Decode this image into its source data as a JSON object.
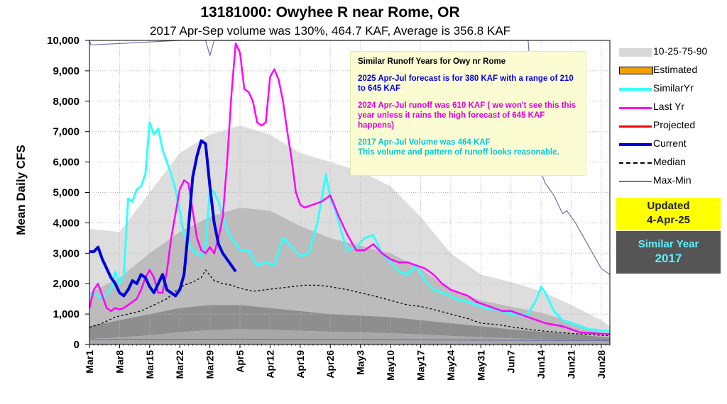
{
  "header": {
    "title": "13181000: Owyhee R near Rome, OR",
    "subtitle": "2017 Apr-Sep volume was 130%, 464.7 KAF, Average is 356.8 KAF"
  },
  "infobox": {
    "heading": "Similar Runoff Years for Owy nr Rome",
    "forecast": "2025 Apr-Jul forecast is for 380 KAF with a range of 210 to 645 KAF",
    "last_year": "2024 Apr-Jul runoff was 610 KAF ( we won't see this this year unless it rains the high forecast of 645 KAF happens)",
    "similar_volume": "2017 Apr-Jul Volume was 464 KAF",
    "similar_note": "This volume and pattern of runoff looks reasonable."
  },
  "legend": [
    {
      "label": "10-25-75-90",
      "key": "band",
      "color": "#d8d8d8"
    },
    {
      "label": "Estimated",
      "key": "estimated",
      "color": "#f0a000"
    },
    {
      "label": "SimilarYr",
      "key": "similar",
      "color": "#33ffff"
    },
    {
      "label": "Last Yr",
      "key": "lastyr",
      "color": "#ff00ff"
    },
    {
      "label": "Projected",
      "key": "projected",
      "color": "#ff0000"
    },
    {
      "label": "Current",
      "key": "current",
      "color": "#0000dd"
    },
    {
      "label": "Median",
      "key": "median",
      "color": "#000000"
    },
    {
      "label": "Max-Min",
      "key": "maxmin",
      "color": "#7070a8"
    }
  ],
  "updated": {
    "label": "Updated",
    "date": "4-Apr-25",
    "bg": "#ffff00"
  },
  "similar_year": {
    "label": "Similar Year",
    "year": "2017",
    "bg": "#555555",
    "color": "#5ef2ff"
  },
  "chart_data": {
    "type": "line",
    "title": "13181000: Owyhee R near Rome, OR",
    "subtitle": "2017 Apr-Sep volume was 130%, 464.7 KAF, Average is 356.8 KAF",
    "ylabel": "Mean Daily CFS",
    "xlabel": "",
    "ylim": [
      0,
      10000
    ],
    "yticks": [
      0,
      1000,
      2000,
      3000,
      4000,
      5000,
      6000,
      7000,
      8000,
      9000,
      10000
    ],
    "ytick_labels": [
      "0",
      "1,000",
      "2,000",
      "3,000",
      "4,000",
      "5,000",
      "6,000",
      "7,000",
      "8,000",
      "9,000",
      "10,000"
    ],
    "xlim": [
      "Mar1",
      "Jun30"
    ],
    "xtick_labels": [
      "Mar1",
      "Mar8",
      "Mar15",
      "Mar22",
      "Mar29",
      "Apr5",
      "Apr12",
      "Apr19",
      "Apr26",
      "May3",
      "May10",
      "May17",
      "May24",
      "May31",
      "Jun7",
      "Jun14",
      "Jun21",
      "Jun28"
    ],
    "xtick_days": [
      0,
      7,
      14,
      21,
      28,
      35,
      42,
      49,
      56,
      63,
      70,
      77,
      84,
      91,
      98,
      105,
      112,
      119
    ],
    "grid": true,
    "colors": {
      "p90": "#dddddd",
      "p75": "#bcbcbc",
      "p25": "#8e8e8e",
      "p10": "#a8a8a8",
      "similar": "#33ffff",
      "lastyr": "#ff00ff",
      "current": "#0000dd",
      "median": "#000000",
      "maxmin": "#7070a8"
    },
    "bands": {
      "days": [
        0,
        7,
        14,
        21,
        28,
        35,
        42,
        49,
        56,
        63,
        70,
        77,
        84,
        91,
        98,
        105,
        112,
        119,
        121
      ],
      "p90": [
        3800,
        3700,
        5000,
        6300,
        6900,
        7200,
        6900,
        6300,
        6000,
        5700,
        5200,
        4200,
        3000,
        2300,
        2050,
        1750,
        1300,
        800,
        600
      ],
      "p75": [
        1700,
        2200,
        3000,
        3700,
        4200,
        4500,
        4400,
        3900,
        3500,
        3250,
        3000,
        2500,
        1800,
        1450,
        1250,
        1050,
        750,
        400,
        350
      ],
      "p25": [
        600,
        800,
        1000,
        1200,
        1300,
        1300,
        1200,
        1100,
        1000,
        950,
        900,
        800,
        700,
        600,
        500,
        420,
        350,
        250,
        230
      ],
      "p10": [
        180,
        230,
        300,
        400,
        470,
        500,
        480,
        450,
        420,
        400,
        370,
        330,
        280,
        240,
        200,
        170,
        140,
        110,
        100
      ]
    },
    "series": [
      {
        "name": "Median",
        "key": "median",
        "dashed": true,
        "x": [
          0,
          3,
          6,
          9,
          12,
          15,
          18,
          20,
          22,
          24,
          26,
          27,
          29,
          31,
          33,
          35,
          38,
          41,
          44,
          47,
          50,
          53,
          56,
          60,
          63,
          66,
          70,
          74,
          77,
          80,
          84,
          88,
          91,
          95,
          98,
          102,
          105,
          109,
          112,
          116,
          119,
          121
        ],
        "y": [
          560,
          700,
          900,
          1000,
          1100,
          1300,
          1500,
          1750,
          1950,
          2050,
          2200,
          2450,
          2100,
          2000,
          1950,
          1850,
          1750,
          1800,
          1850,
          1900,
          1950,
          1950,
          1900,
          1800,
          1700,
          1600,
          1450,
          1300,
          1250,
          1150,
          1000,
          850,
          700,
          650,
          580,
          500,
          450,
          400,
          360,
          330,
          300,
          290
        ]
      },
      {
        "name": "SimilarYr",
        "key": "similar",
        "x": [
          0,
          1,
          3,
          5,
          6,
          7,
          8,
          9,
          10,
          11,
          12,
          13,
          14,
          15,
          16,
          17,
          18,
          19,
          20,
          21,
          22,
          23,
          24,
          25,
          26,
          27,
          28,
          29,
          30,
          31,
          32,
          33,
          35,
          37,
          39,
          41,
          43,
          45,
          47,
          49,
          51,
          53,
          55,
          56,
          57,
          58,
          59,
          60,
          62,
          64,
          66,
          68,
          70,
          72,
          74,
          76,
          78,
          80,
          82,
          84,
          86,
          88,
          90,
          92,
          94,
          96,
          98,
          100,
          102,
          104,
          105,
          106,
          108,
          110,
          112,
          114,
          116,
          118,
          120,
          121
        ],
        "y": [
          1600,
          1700,
          1500,
          1800,
          2400,
          2000,
          2300,
          4800,
          4700,
          5100,
          5200,
          5600,
          7300,
          6900,
          7100,
          6400,
          6000,
          5600,
          5100,
          4400,
          3600,
          3400,
          3100,
          3000,
          2900,
          3300,
          5100,
          5000,
          4700,
          4200,
          3800,
          3500,
          3100,
          3100,
          2600,
          2700,
          2600,
          3500,
          3200,
          2900,
          3000,
          4000,
          5600,
          4800,
          4500,
          4000,
          3500,
          3100,
          3200,
          3500,
          3600,
          3000,
          2700,
          2400,
          2300,
          2600,
          2100,
          1800,
          1700,
          1600,
          1450,
          1400,
          1300,
          1200,
          1150,
          1100,
          1000,
          950,
          1000,
          1500,
          1900,
          1700,
          1100,
          800,
          700,
          600,
          500,
          480,
          440,
          430
        ]
      },
      {
        "name": "Last Yr",
        "key": "lastyr",
        "x": [
          0,
          1,
          2,
          3,
          4,
          5,
          6,
          7,
          8,
          9,
          10,
          11,
          12,
          13,
          14,
          15,
          16,
          17,
          18,
          19,
          20,
          21,
          22,
          23,
          24,
          25,
          26,
          27,
          28,
          29,
          30,
          31,
          32,
          33,
          34,
          35,
          36,
          37,
          38,
          39,
          40,
          41,
          42,
          43,
          44,
          45,
          46,
          47,
          48,
          49,
          50,
          52,
          54,
          56,
          58,
          60,
          62,
          64,
          66,
          68,
          70,
          72,
          74,
          76,
          78,
          80,
          82,
          84,
          86,
          88,
          90,
          92,
          94,
          96,
          98,
          100,
          102,
          104,
          106,
          108,
          110,
          112,
          114,
          116,
          118,
          120,
          121
        ],
        "y": [
          1200,
          1800,
          2000,
          1600,
          1200,
          1100,
          1200,
          1150,
          1200,
          1300,
          1400,
          1500,
          1800,
          2200,
          2450,
          2200,
          1700,
          1700,
          2400,
          3500,
          4300,
          5100,
          5400,
          5300,
          4400,
          3500,
          3100,
          3000,
          3200,
          3000,
          3500,
          4200,
          6000,
          8200,
          9900,
          9600,
          8400,
          8300,
          8000,
          7300,
          7200,
          7300,
          8800,
          9050,
          8700,
          8000,
          7000,
          6100,
          5000,
          4600,
          4500,
          4600,
          4700,
          4900,
          4200,
          3600,
          3100,
          3100,
          3300,
          3000,
          2800,
          2700,
          2700,
          2600,
          2500,
          2300,
          2000,
          1800,
          1700,
          1600,
          1400,
          1300,
          1200,
          1100,
          1100,
          1000,
          900,
          800,
          700,
          650,
          600,
          500,
          400,
          380,
          360,
          350,
          340
        ]
      },
      {
        "name": "Current",
        "key": "current",
        "x": [
          0,
          1,
          2,
          3,
          4,
          5,
          6,
          7,
          8,
          9,
          10,
          11,
          12,
          13,
          14,
          15,
          16,
          17,
          18,
          19,
          20,
          21,
          22,
          23,
          24,
          25,
          26,
          27,
          28,
          29,
          30,
          31,
          32,
          33,
          34
        ],
        "y": [
          3050,
          3050,
          3200,
          2800,
          2500,
          2200,
          2000,
          1700,
          1600,
          1800,
          2100,
          2000,
          2300,
          2200,
          1900,
          1700,
          2000,
          2300,
          1800,
          1700,
          1600,
          1800,
          2300,
          3800,
          5500,
          6200,
          6700,
          6600,
          5200,
          4000,
          3300,
          3000,
          2800,
          2600,
          2400
        ]
      },
      {
        "name": "Max-Min (max)",
        "key": "maxmin",
        "x": [
          0,
          0.3,
          21,
          24,
          27,
          28,
          29,
          30,
          31,
          32,
          102,
          104,
          106,
          108,
          109,
          110,
          111,
          113,
          115,
          117,
          119,
          121
        ],
        "y": [
          10000,
          9850,
          10000,
          10000,
          10000,
          9500,
          10000,
          10000,
          10000,
          10000,
          10000,
          6000,
          5300,
          4900,
          4600,
          4300,
          4400,
          4000,
          3500,
          3000,
          2500,
          2300
        ]
      },
      {
        "name": "Max-Min (min)",
        "key": "maxmin",
        "x": [
          0,
          20,
          40,
          60,
          80,
          100,
          121
        ],
        "y": [
          150,
          160,
          160,
          155,
          150,
          140,
          130
        ]
      }
    ]
  }
}
